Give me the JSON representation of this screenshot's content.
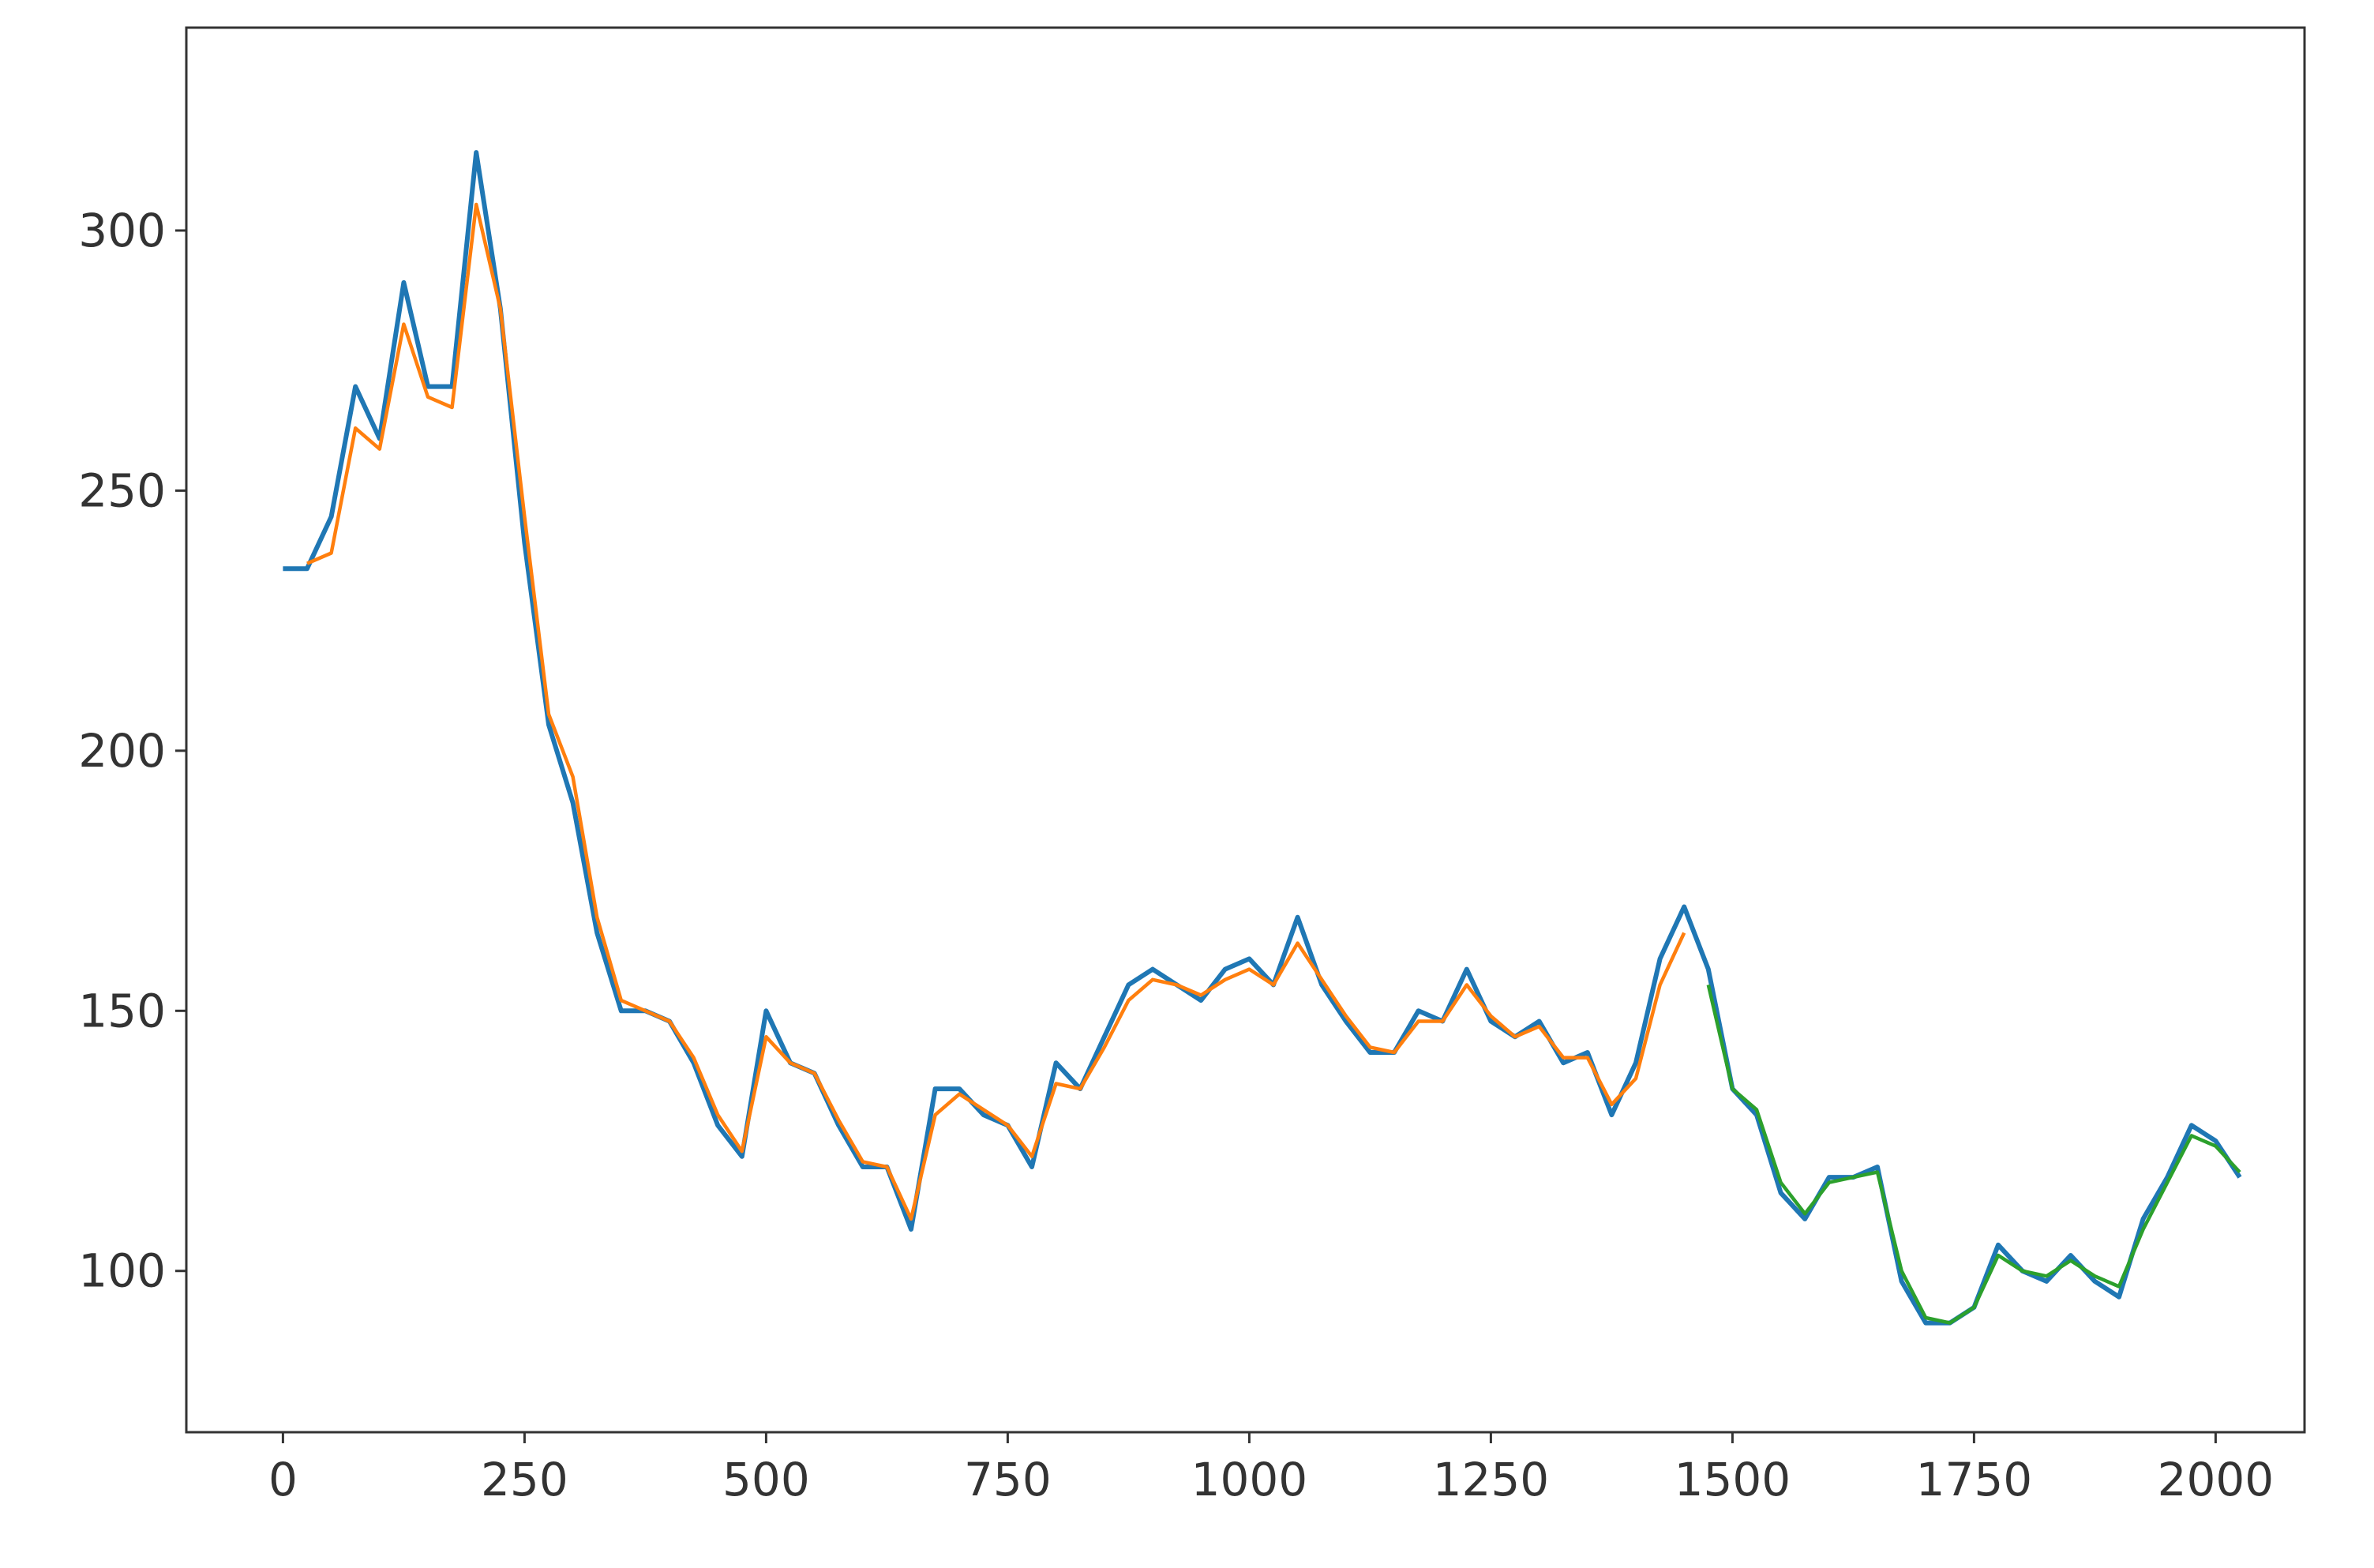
{
  "chart_data": {
    "type": "line",
    "x": [
      0,
      25,
      50,
      75,
      100,
      125,
      150,
      175,
      200,
      225,
      250,
      275,
      300,
      325,
      350,
      375,
      400,
      425,
      450,
      475,
      500,
      525,
      550,
      575,
      600,
      625,
      650,
      675,
      700,
      725,
      750,
      775,
      800,
      825,
      850,
      875,
      900,
      925,
      950,
      975,
      1000,
      1025,
      1050,
      1075,
      1100,
      1125,
      1150,
      1175,
      1200,
      1225,
      1250,
      1275,
      1300,
      1325,
      1350,
      1375,
      1400,
      1425,
      1450,
      1475,
      1500,
      1525,
      1550,
      1575,
      1600,
      1625,
      1650,
      1675,
      1700,
      1725,
      1750,
      1775,
      1800,
      1825,
      1850,
      1875,
      1900,
      1925,
      1950,
      1975,
      2000,
      2025
    ],
    "series": [
      {
        "color": "#1f77b4",
        "values": [
          235,
          235,
          245,
          270,
          260,
          290,
          270,
          270,
          315,
          285,
          240,
          205,
          190,
          165,
          150,
          150,
          148,
          140,
          128,
          122,
          150,
          140,
          138,
          128,
          120,
          120,
          108,
          135,
          135,
          130,
          128,
          120,
          140,
          135,
          145,
          155,
          158,
          155,
          152,
          158,
          160,
          155,
          168,
          155,
          148,
          142,
          142,
          150,
          148,
          158,
          148,
          145,
          148,
          140,
          142,
          130,
          140,
          160,
          170,
          158,
          135,
          130,
          115,
          110,
          118,
          118,
          120,
          98,
          90,
          90,
          93,
          105,
          100,
          98,
          103,
          98,
          95,
          110,
          118,
          128,
          125,
          118
        ]
      },
      {
        "color": "#ff7f0e",
        "values": [
          null,
          236,
          238,
          262,
          258,
          282,
          268,
          266,
          305,
          285,
          245,
          207,
          195,
          168,
          152,
          150,
          148,
          141,
          130,
          123,
          145,
          140,
          138,
          129,
          121,
          120,
          110,
          130,
          134,
          131,
          128,
          122,
          136,
          135,
          143,
          152,
          156,
          155,
          153,
          156,
          158,
          155,
          163,
          156,
          149,
          143,
          142,
          148,
          148,
          155,
          149,
          145,
          147,
          141,
          141,
          132,
          137,
          155,
          165,
          null,
          null,
          null,
          null,
          null,
          null,
          null,
          null,
          null,
          null,
          null,
          null,
          null,
          null,
          null,
          null,
          null,
          null,
          null,
          null,
          null,
          null,
          null
        ]
      },
      {
        "color": "#2ca02c",
        "values": [
          null,
          null,
          null,
          null,
          null,
          null,
          null,
          null,
          null,
          null,
          null,
          null,
          null,
          null,
          null,
          null,
          null,
          null,
          null,
          null,
          null,
          null,
          null,
          null,
          null,
          null,
          null,
          null,
          null,
          null,
          null,
          null,
          null,
          null,
          null,
          null,
          null,
          null,
          null,
          null,
          null,
          null,
          null,
          null,
          null,
          null,
          null,
          null,
          null,
          null,
          null,
          null,
          null,
          null,
          null,
          null,
          null,
          null,
          null,
          155,
          135,
          131,
          117,
          111,
          117,
          118,
          119,
          100,
          91,
          90,
          93,
          103,
          100,
          99,
          102,
          99,
          97,
          108,
          117,
          126,
          124,
          119
        ]
      }
    ],
    "xlim": [
      -100,
      2092
    ],
    "ylim": [
      69,
      339
    ],
    "xticks": [
      0,
      250,
      500,
      750,
      1000,
      1250,
      1500,
      1750,
      2000
    ],
    "yticks": [
      100,
      150,
      200,
      250,
      300
    ]
  }
}
